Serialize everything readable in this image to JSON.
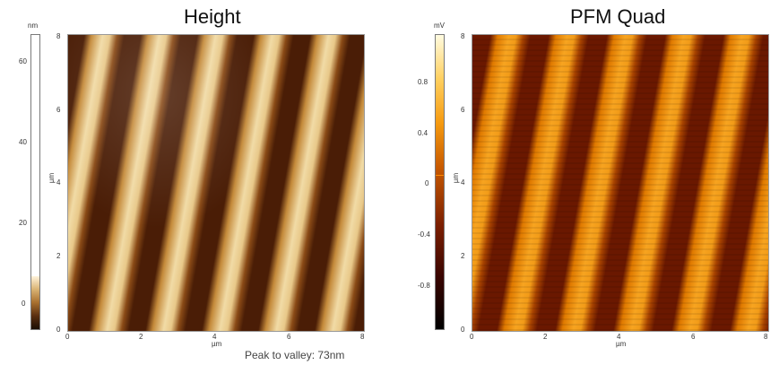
{
  "left_panel": {
    "title": "Height",
    "colorbar_unit": "nm",
    "colorbar_ticks": [
      "60",
      "40",
      "20",
      "0"
    ],
    "y_unit": "µm",
    "y_ticks": [
      "8",
      "6",
      "4",
      "2",
      "0"
    ],
    "x_unit": "µm",
    "x_ticks": [
      "0",
      "2",
      "4",
      "6",
      "8"
    ]
  },
  "right_panel": {
    "title": "PFM Quad",
    "colorbar_unit": "mV",
    "colorbar_ticks": [
      "0.8",
      "0.4",
      "0",
      "-0.4",
      "-0.8"
    ],
    "y_unit": "µm",
    "y_ticks": [
      "8",
      "6",
      "4",
      "2",
      "0"
    ],
    "x_unit": "µm",
    "x_ticks": [
      "0",
      "2",
      "4",
      "6",
      "8"
    ]
  },
  "caption": "Peak to valley: 73nm",
  "colors": {
    "height_dark": "#4a1d06",
    "height_light": "#f1dba6",
    "pfm_dark": "#6a1800",
    "pfm_light": "#f7a420",
    "pfm_zero_mark": "#ff8a00"
  }
}
